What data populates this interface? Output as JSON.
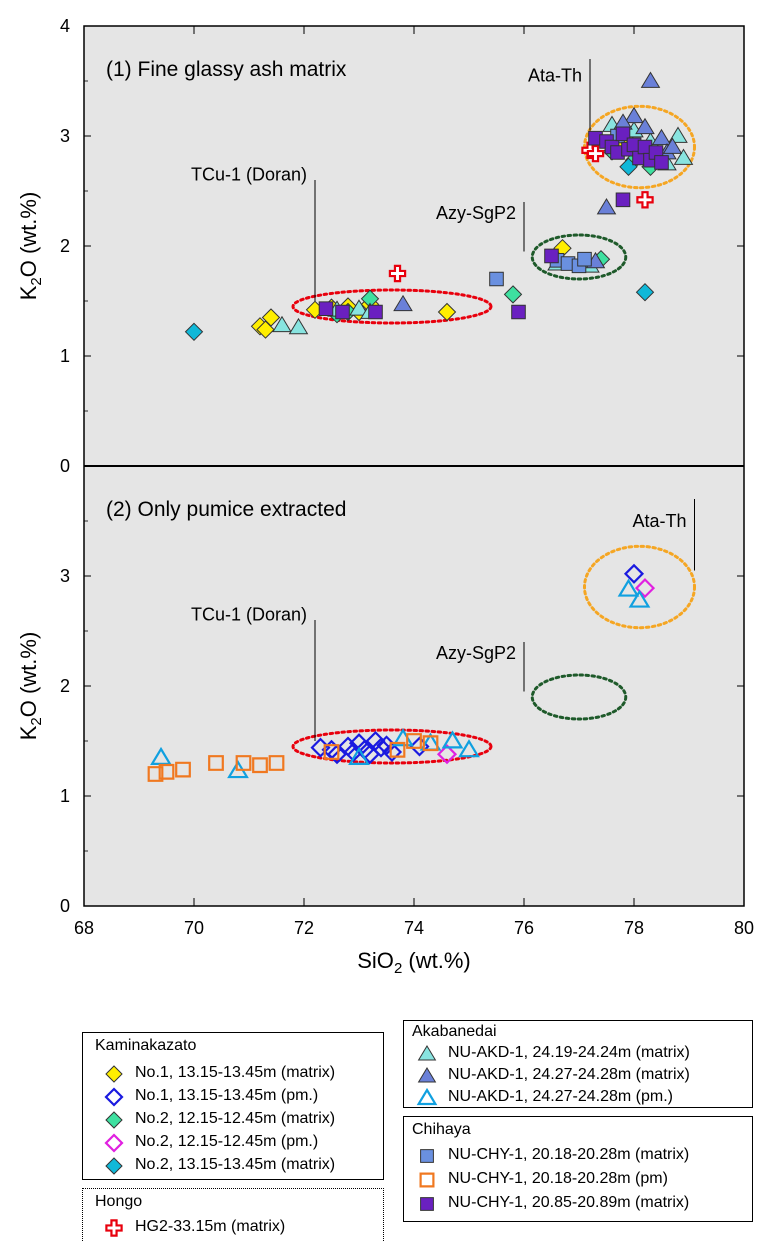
{
  "chart_data": [
    {
      "type": "scatter",
      "panel_title": "(1) Fine glassy ash matrix",
      "xlabel": "SiO2 (wt.%)",
      "ylabel": "K2O (wt.%)",
      "xlim": [
        68,
        80
      ],
      "ylim": [
        0,
        4
      ],
      "annotations": [
        {
          "text": "TCu-1 (Doran)",
          "x": 72.0,
          "y": 2.65,
          "line_from": [
            72.2,
            2.6
          ],
          "line_to": [
            72.2,
            1.5
          ]
        },
        {
          "text": "Azy-SgP2",
          "x": 75.8,
          "y": 2.3,
          "line_from": [
            76.0,
            2.4
          ],
          "line_to": [
            76.0,
            1.95
          ]
        },
        {
          "text": "Ata-Th",
          "x": 77.2,
          "y": 3.55,
          "line_from": [
            77.2,
            3.7
          ],
          "line_to": [
            77.2,
            3.05
          ]
        }
      ],
      "ellipses": [
        {
          "name": "TCu-1",
          "cx": 73.6,
          "cy": 1.45,
          "rx": 1.8,
          "ry": 0.15,
          "color": "#e8000d"
        },
        {
          "name": "Azy-SgP2",
          "cx": 77.0,
          "cy": 1.9,
          "rx": 0.85,
          "ry": 0.2,
          "color": "#1e5a2a"
        },
        {
          "name": "Ata-Th",
          "cx": 78.1,
          "cy": 2.9,
          "rx": 1.0,
          "ry": 0.37,
          "color": "#f5a623"
        }
      ],
      "series": [
        {
          "name": "No.1, 13.15-13.45m (matrix)",
          "marker": "diamond",
          "fill": "#ffee00",
          "stroke": "#333333",
          "points": [
            [
              71.2,
              1.27
            ],
            [
              71.3,
              1.24
            ],
            [
              71.4,
              1.35
            ],
            [
              72.2,
              1.42
            ],
            [
              72.5,
              1.44
            ],
            [
              72.8,
              1.45
            ],
            [
              73.0,
              1.4
            ],
            [
              73.2,
              1.47
            ],
            [
              74.6,
              1.4
            ],
            [
              76.7,
              1.98
            ],
            [
              77.7,
              2.9
            ],
            [
              77.9,
              2.95
            ],
            [
              78.1,
              2.85
            ]
          ]
        },
        {
          "name": "No.2, 12.15-12.45m (matrix)",
          "marker": "diamond",
          "fill": "#3ee0a0",
          "stroke": "#333333",
          "points": [
            [
              72.6,
              1.38
            ],
            [
              72.8,
              1.4
            ],
            [
              73.2,
              1.52
            ],
            [
              75.8,
              1.56
            ],
            [
              77.4,
              1.88
            ],
            [
              77.6,
              2.86
            ],
            [
              78.0,
              2.78
            ],
            [
              78.3,
              2.72
            ]
          ]
        },
        {
          "name": "No.2, 13.15-13.45m (matrix)",
          "marker": "diamond",
          "fill": "#10b8d8",
          "stroke": "#333333",
          "points": [
            [
              70.0,
              1.22
            ],
            [
              78.2,
              1.58
            ],
            [
              77.9,
              2.72
            ],
            [
              78.3,
              2.8
            ]
          ]
        },
        {
          "name": "NU-AKD-1, 24.19-24.24m (matrix)",
          "marker": "triangle",
          "fill": "#88e4e0",
          "stroke": "#333333",
          "points": [
            [
              71.6,
              1.28
            ],
            [
              71.9,
              1.26
            ],
            [
              72.6,
              1.42
            ],
            [
              73.0,
              1.43
            ],
            [
              73.2,
              1.4
            ],
            [
              76.6,
              1.84
            ],
            [
              77.2,
              1.82
            ],
            [
              77.6,
              3.1
            ],
            [
              78.0,
              3.05
            ],
            [
              78.3,
              2.95
            ],
            [
              78.6,
              2.75
            ],
            [
              78.8,
              3.0
            ],
            [
              78.9,
              2.8
            ]
          ]
        },
        {
          "name": "NU-AKD-1, 24.27-24.28m (matrix)",
          "marker": "triangle",
          "fill": "#6a80d8",
          "stroke": "#333333",
          "points": [
            [
              73.8,
              1.47
            ],
            [
              77.3,
              1.86
            ],
            [
              77.5,
              2.35
            ],
            [
              78.3,
              3.5
            ],
            [
              78.0,
              3.18
            ],
            [
              78.2,
              3.08
            ],
            [
              78.5,
              2.98
            ],
            [
              78.6,
              2.85
            ],
            [
              78.7,
              2.9
            ],
            [
              77.8,
              3.12
            ]
          ]
        },
        {
          "name": "HG2-33.15m (matrix)",
          "marker": "cross",
          "fill": "#ffffff",
          "stroke": "#e8000d",
          "points": [
            [
              73.7,
              1.75
            ],
            [
              77.2,
              2.87
            ],
            [
              77.3,
              2.84
            ],
            [
              78.2,
              2.42
            ]
          ]
        },
        {
          "name": "NU-CHY-1, 20.18-20.28m (matrix)",
          "marker": "square",
          "fill": "#6a90e0",
          "stroke": "#333333",
          "points": [
            [
              75.5,
              1.7
            ],
            [
              76.6,
              1.87
            ],
            [
              76.8,
              1.84
            ],
            [
              77.0,
              1.82
            ],
            [
              77.1,
              1.88
            ],
            [
              77.7,
              3.0
            ],
            [
              78.0,
              2.92
            ]
          ]
        },
        {
          "name": "NU-CHY-1, 20.85-20.89m (matrix)",
          "marker": "square",
          "fill": "#6a20c0",
          "stroke": "#333333",
          "points": [
            [
              72.4,
              1.43
            ],
            [
              72.7,
              1.4
            ],
            [
              73.3,
              1.4
            ],
            [
              75.9,
              1.4
            ],
            [
              76.5,
              1.91
            ],
            [
              77.3,
              2.98
            ],
            [
              77.5,
              2.95
            ],
            [
              77.6,
              2.9
            ],
            [
              77.7,
              2.85
            ],
            [
              77.8,
              3.02
            ],
            [
              77.9,
              2.88
            ],
            [
              78.0,
              2.92
            ],
            [
              78.1,
              2.8
            ],
            [
              78.2,
              2.9
            ],
            [
              78.3,
              2.78
            ],
            [
              78.4,
              2.85
            ],
            [
              78.5,
              2.76
            ],
            [
              77.8,
              2.42
            ]
          ]
        }
      ]
    },
    {
      "type": "scatter",
      "panel_title": "(2) Only pumice extracted",
      "xlabel": "SiO2 (wt.%)",
      "ylabel": "K2O (wt.%)",
      "xlim": [
        68,
        80
      ],
      "ylim": [
        0,
        4
      ],
      "annotations": [
        {
          "text": "TCu-1 (Doran)",
          "x": 72.0,
          "y": 2.65,
          "line_from": [
            72.2,
            2.6
          ],
          "line_to": [
            72.2,
            1.5
          ]
        },
        {
          "text": "Azy-SgP2",
          "x": 75.8,
          "y": 2.3,
          "line_from": [
            76.0,
            2.4
          ],
          "line_to": [
            76.0,
            1.95
          ]
        },
        {
          "text": "Ata-Th",
          "x": 78.9,
          "y": 3.5,
          "line_from": [
            79.1,
            3.7
          ],
          "line_to": [
            79.1,
            3.05
          ]
        }
      ],
      "ellipses": [
        {
          "name": "TCu-1",
          "cx": 73.6,
          "cy": 1.45,
          "rx": 1.8,
          "ry": 0.15,
          "color": "#e8000d"
        },
        {
          "name": "Azy-SgP2",
          "cx": 77.0,
          "cy": 1.9,
          "rx": 0.85,
          "ry": 0.2,
          "color": "#1e5a2a"
        },
        {
          "name": "Ata-Th",
          "cx": 78.1,
          "cy": 2.9,
          "rx": 1.0,
          "ry": 0.37,
          "color": "#f5a623"
        }
      ],
      "series": [
        {
          "name": "No.1, 13.15-13.45m (pm.)",
          "marker": "diamond-open",
          "fill": "none",
          "stroke": "#1a1ae0",
          "points": [
            [
              72.3,
              1.44
            ],
            [
              72.5,
              1.42
            ],
            [
              72.6,
              1.38
            ],
            [
              72.8,
              1.45
            ],
            [
              72.9,
              1.4
            ],
            [
              73.0,
              1.48
            ],
            [
              73.1,
              1.42
            ],
            [
              73.2,
              1.38
            ],
            [
              73.3,
              1.5
            ],
            [
              73.4,
              1.44
            ],
            [
              73.5,
              1.46
            ],
            [
              73.6,
              1.4
            ],
            [
              74.1,
              1.45
            ],
            [
              78.0,
              3.02
            ]
          ]
        },
        {
          "name": "No.2, 12.15-12.45m (pm.)",
          "marker": "diamond-open",
          "fill": "none",
          "stroke": "#e020e0",
          "points": [
            [
              74.6,
              1.38
            ],
            [
              78.2,
              2.89
            ]
          ]
        },
        {
          "name": "NU-AKD-1, 24.27-24.28m (pm.)",
          "marker": "triangle-open",
          "fill": "none",
          "stroke": "#10a0e0",
          "points": [
            [
              69.4,
              1.35
            ],
            [
              70.8,
              1.23
            ],
            [
              73.0,
              1.35
            ],
            [
              73.8,
              1.52
            ],
            [
              74.3,
              1.48
            ],
            [
              74.7,
              1.5
            ],
            [
              75.0,
              1.42
            ],
            [
              77.9,
              2.88
            ],
            [
              78.1,
              2.78
            ]
          ]
        },
        {
          "name": "NU-CHY-1, 20.18-20.28m (pm)",
          "marker": "square-open",
          "fill": "none",
          "stroke": "#f07820",
          "points": [
            [
              69.3,
              1.2
            ],
            [
              69.5,
              1.22
            ],
            [
              69.8,
              1.24
            ],
            [
              70.4,
              1.3
            ],
            [
              70.9,
              1.3
            ],
            [
              71.2,
              1.28
            ],
            [
              71.5,
              1.3
            ],
            [
              72.5,
              1.4
            ],
            [
              73.7,
              1.42
            ],
            [
              74.0,
              1.5
            ],
            [
              74.3,
              1.48
            ]
          ]
        }
      ]
    }
  ],
  "axis": {
    "x_ticks": [
      "68",
      "70",
      "72",
      "74",
      "76",
      "78",
      "80"
    ],
    "y_ticks_top": [
      "0",
      "1",
      "2",
      "3",
      "4"
    ],
    "y_ticks_bottom": [
      "0",
      "1",
      "2",
      "3"
    ],
    "xlabel": "SiO",
    "xlabel_sub": "2",
    "xlabel_suffix": " (wt.%)",
    "ylabel": "K",
    "ylabel_sub": "2",
    "ylabel_suffix": "O (wt.%)"
  },
  "legend": {
    "kaminakazato": {
      "title": "Kaminakazato",
      "items": [
        {
          "label": "No.1, 13.15-13.45m (matrix)",
          "marker": "diamond",
          "fill": "#ffee00",
          "stroke": "#333333"
        },
        {
          "label": "No.1, 13.15-13.45m (pm.)",
          "marker": "diamond-open",
          "fill": "none",
          "stroke": "#1a1ae0"
        },
        {
          "label": "No.2, 12.15-12.45m (matrix)",
          "marker": "diamond",
          "fill": "#3ee0a0",
          "stroke": "#333333"
        },
        {
          "label": "No.2, 12.15-12.45m (pm.)",
          "marker": "diamond-open",
          "fill": "none",
          "stroke": "#e020e0"
        },
        {
          "label": "No.2, 13.15-13.45m (matrix)",
          "marker": "diamond",
          "fill": "#10b8d8",
          "stroke": "#333333"
        }
      ]
    },
    "hongo": {
      "title": "Hongo",
      "items": [
        {
          "label": "HG2-33.15m (matrix)",
          "marker": "cross",
          "fill": "#ffffff",
          "stroke": "#e8000d"
        }
      ]
    },
    "akabanedai": {
      "title": "Akabanedai",
      "items": [
        {
          "label": "NU-AKD-1, 24.19-24.24m (matrix)",
          "marker": "triangle",
          "fill": "#88e4e0",
          "stroke": "#333333"
        },
        {
          "label": "NU-AKD-1, 24.27-24.28m (matrix)",
          "marker": "triangle",
          "fill": "#6a80d8",
          "stroke": "#333333"
        },
        {
          "label": "NU-AKD-1, 24.27-24.28m (pm.)",
          "marker": "triangle-open",
          "fill": "none",
          "stroke": "#10a0e0"
        }
      ]
    },
    "chihaya": {
      "title": "Chihaya",
      "items": [
        {
          "label": "NU-CHY-1, 20.18-20.28m (matrix)",
          "marker": "square",
          "fill": "#6a90e0",
          "stroke": "#333333"
        },
        {
          "label": "NU-CHY-1, 20.18-20.28m (pm)",
          "marker": "square-open",
          "fill": "none",
          "stroke": "#f07820"
        },
        {
          "label": "NU-CHY-1, 20.85-20.89m (matrix)",
          "marker": "square",
          "fill": "#6a20c0",
          "stroke": "#333333"
        }
      ]
    }
  },
  "colors": {
    "plot_bg": "#e5e5e5",
    "axis": "#000000"
  }
}
